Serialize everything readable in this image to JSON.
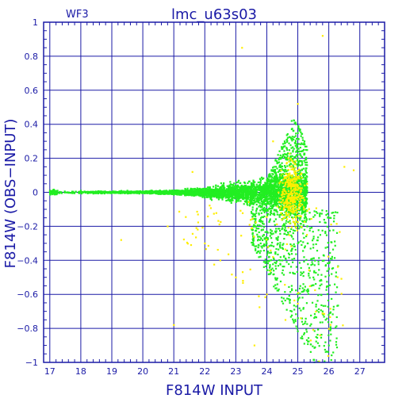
{
  "chart_data": {
    "type": "scatter",
    "title": "lmc_u63s03",
    "corner_label": "WF3",
    "xlabel": "F814W  INPUT",
    "ylabel": "F814W  (OBS−INPUT)",
    "xlim": [
      16.8,
      27.8
    ],
    "ylim": [
      -1,
      1
    ],
    "x_ticks": [
      "17",
      "18",
      "19",
      "20",
      "21",
      "22",
      "23",
      "24",
      "25",
      "26",
      "27"
    ],
    "y_ticks": [
      "1",
      "0.8",
      "0.6",
      "0.4",
      "0.2",
      "0",
      "−0.2",
      "−0.4",
      "−0.6",
      "−0.8",
      "−1"
    ],
    "y_tick_values": [
      1,
      0.8,
      0.6,
      0.4,
      0.2,
      0,
      -0.2,
      -0.4,
      -0.6,
      -0.8,
      -1
    ],
    "grid": true,
    "series": [
      {
        "color": "#22ee22",
        "description_points": [
          [
            17.0,
            0.01
          ],
          [
            17.5,
            0.0
          ],
          [
            18.0,
            0.01
          ],
          [
            18.5,
            0.0
          ],
          [
            19.0,
            0.0
          ],
          [
            19.5,
            0.01
          ],
          [
            20.0,
            0.0
          ],
          [
            20.5,
            -0.01
          ],
          [
            21.0,
            0.0
          ],
          [
            21.5,
            0.01
          ],
          [
            22.0,
            -0.01
          ],
          [
            22.5,
            0.02
          ],
          [
            23.0,
            0.0
          ],
          [
            23.5,
            0.05
          ],
          [
            24.0,
            -0.05
          ],
          [
            24.5,
            0.1
          ],
          [
            25.0,
            0.2
          ],
          [
            24.8,
            0.42
          ],
          [
            25.0,
            -0.3
          ],
          [
            25.5,
            -0.5
          ],
          [
            26.0,
            -0.9
          ],
          [
            25.8,
            -0.7
          ],
          [
            23.8,
            -0.3
          ],
          [
            24.5,
            -0.4
          ],
          [
            25.3,
            -0.2
          ]
        ]
      },
      {
        "color": "#ffee00",
        "description_points": [
          [
            23.2,
            0.85
          ],
          [
            25.0,
            0.52
          ],
          [
            25.8,
            0.92
          ],
          [
            26.5,
            0.15
          ],
          [
            22.0,
            -0.3
          ],
          [
            22.5,
            -0.4
          ],
          [
            23.0,
            -0.5
          ],
          [
            24.0,
            -0.6
          ],
          [
            25.2,
            -0.1
          ],
          [
            25.3,
            0.05
          ],
          [
            24.6,
            -0.75
          ],
          [
            23.6,
            -0.9
          ],
          [
            21.0,
            -0.78
          ],
          [
            26.8,
            0.13
          ],
          [
            20.8,
            -0.2
          ],
          [
            19.3,
            -0.28
          ],
          [
            21.6,
            0.12
          ],
          [
            24.2,
            0.3
          ]
        ]
      }
    ]
  }
}
